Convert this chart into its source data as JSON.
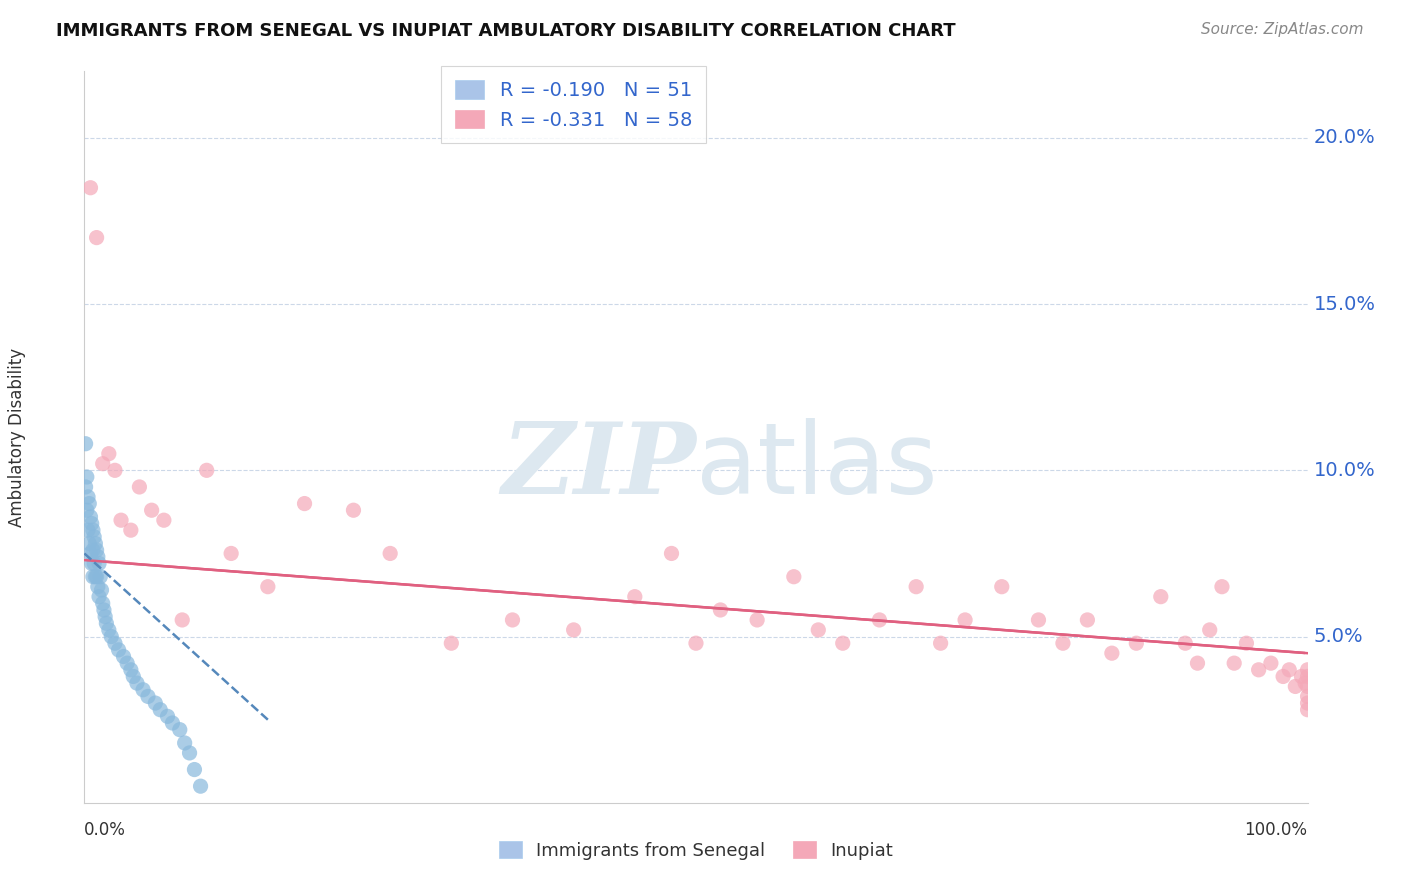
{
  "title": "IMMIGRANTS FROM SENEGAL VS INUPIAT AMBULATORY DISABILITY CORRELATION CHART",
  "source": "Source: ZipAtlas.com",
  "ylabel": "Ambulatory Disability",
  "y_ticks": [
    0.05,
    0.1,
    0.15,
    0.2
  ],
  "y_tick_labels": [
    "5.0%",
    "10.0%",
    "15.0%",
    "20.0%"
  ],
  "legend1_label": "R = -0.190   N = 51",
  "legend2_label": "R = -0.331   N = 58",
  "legend1_color": "#aac4e8",
  "legend2_color": "#f4a8b8",
  "senegal_color": "#88b8dc",
  "inupiat_color": "#f4a8b8",
  "line_senegal_color": "#5588bb",
  "line_inupiat_color": "#e06080",
  "background_color": "#ffffff",
  "grid_color": "#ccd8e8",
  "watermark_color": "#dde8f0",
  "xlim": [
    0.0,
    1.0
  ],
  "ylim": [
    0.0,
    0.22
  ],
  "senegal_x": [
    0.001,
    0.001,
    0.002,
    0.002,
    0.003,
    0.003,
    0.004,
    0.004,
    0.005,
    0.005,
    0.006,
    0.006,
    0.007,
    0.007,
    0.007,
    0.008,
    0.008,
    0.009,
    0.009,
    0.01,
    0.01,
    0.011,
    0.011,
    0.012,
    0.012,
    0.013,
    0.014,
    0.015,
    0.016,
    0.017,
    0.018,
    0.02,
    0.022,
    0.025,
    0.028,
    0.032,
    0.035,
    0.038,
    0.04,
    0.043,
    0.048,
    0.052,
    0.058,
    0.062,
    0.068,
    0.072,
    0.078,
    0.082,
    0.086,
    0.09,
    0.095
  ],
  "senegal_y": [
    0.108,
    0.095,
    0.098,
    0.088,
    0.092,
    0.082,
    0.09,
    0.078,
    0.086,
    0.075,
    0.084,
    0.072,
    0.082,
    0.076,
    0.068,
    0.08,
    0.072,
    0.078,
    0.068,
    0.076,
    0.068,
    0.074,
    0.065,
    0.072,
    0.062,
    0.068,
    0.064,
    0.06,
    0.058,
    0.056,
    0.054,
    0.052,
    0.05,
    0.048,
    0.046,
    0.044,
    0.042,
    0.04,
    0.038,
    0.036,
    0.034,
    0.032,
    0.03,
    0.028,
    0.026,
    0.024,
    0.022,
    0.018,
    0.015,
    0.01,
    0.005
  ],
  "inupiat_x": [
    0.005,
    0.01,
    0.015,
    0.02,
    0.025,
    0.03,
    0.038,
    0.045,
    0.055,
    0.065,
    0.08,
    0.1,
    0.12,
    0.15,
    0.18,
    0.22,
    0.25,
    0.3,
    0.35,
    0.4,
    0.45,
    0.48,
    0.5,
    0.52,
    0.55,
    0.58,
    0.6,
    0.62,
    0.65,
    0.68,
    0.7,
    0.72,
    0.75,
    0.78,
    0.8,
    0.82,
    0.84,
    0.86,
    0.88,
    0.9,
    0.91,
    0.92,
    0.93,
    0.94,
    0.95,
    0.96,
    0.97,
    0.98,
    0.985,
    0.99,
    0.995,
    0.998,
    1.0,
    1.0,
    1.0,
    1.0,
    1.0,
    1.0
  ],
  "inupiat_y": [
    0.185,
    0.17,
    0.102,
    0.105,
    0.1,
    0.085,
    0.082,
    0.095,
    0.088,
    0.085,
    0.055,
    0.1,
    0.075,
    0.065,
    0.09,
    0.088,
    0.075,
    0.048,
    0.055,
    0.052,
    0.062,
    0.075,
    0.048,
    0.058,
    0.055,
    0.068,
    0.052,
    0.048,
    0.055,
    0.065,
    0.048,
    0.055,
    0.065,
    0.055,
    0.048,
    0.055,
    0.045,
    0.048,
    0.062,
    0.048,
    0.042,
    0.052,
    0.065,
    0.042,
    0.048,
    0.04,
    0.042,
    0.038,
    0.04,
    0.035,
    0.038,
    0.036,
    0.04,
    0.035,
    0.038,
    0.032,
    0.03,
    0.028
  ],
  "senegal_line": {
    "x0": 0.0,
    "x1": 0.15,
    "y0": 0.075,
    "y1": 0.025
  },
  "inupiat_line": {
    "x0": 0.0,
    "x1": 1.0,
    "y0": 0.073,
    "y1": 0.045
  }
}
